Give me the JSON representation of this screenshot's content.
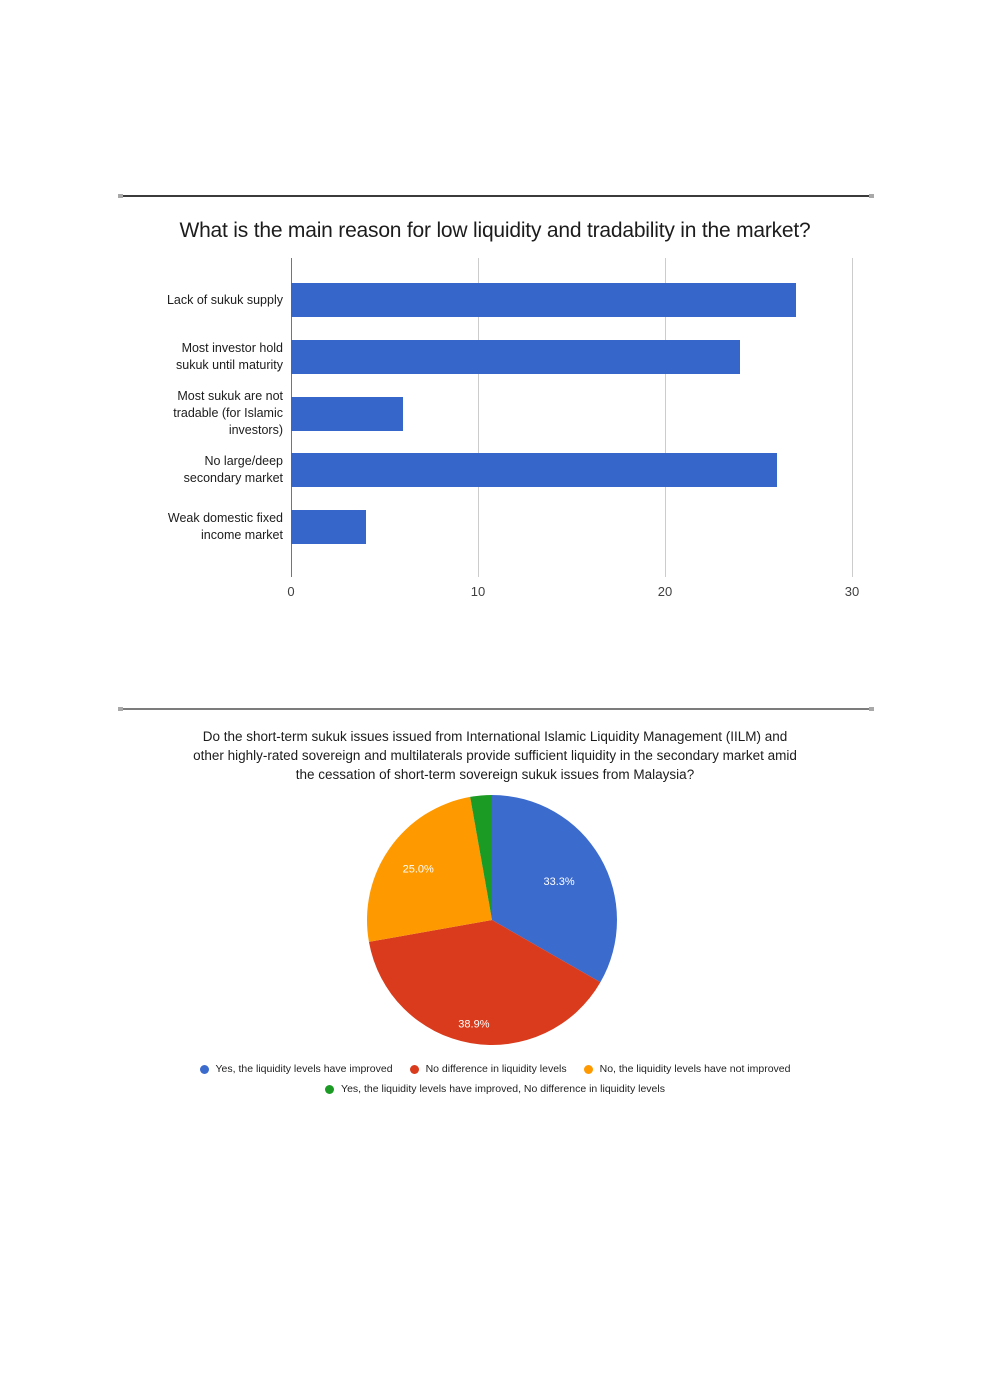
{
  "page": {
    "background": "#ffffff"
  },
  "chart_data": [
    {
      "type": "bar",
      "orientation": "horizontal",
      "title": "What is the main reason for low liquidity and tradability in the market?",
      "categories": [
        "Lack of sukuk supply",
        "Most investor hold sukuk until maturity",
        "Most sukuk are not tradable (for Islamic investors)",
        "No large/deep secondary market",
        "Weak domestic fixed income market"
      ],
      "category_lines": [
        [
          "Lack of sukuk supply"
        ],
        [
          "Most investor hold",
          "sukuk until maturity"
        ],
        [
          "Most sukuk are not",
          "tradable (for Islamic",
          "investors)"
        ],
        [
          "No large/deep",
          "secondary market"
        ],
        [
          "Weak domestic fixed",
          "income market"
        ]
      ],
      "values": [
        27,
        24,
        6,
        26,
        4
      ],
      "xticks": [
        0,
        10,
        20,
        30
      ],
      "xlim": [
        0,
        30
      ],
      "bar_color": "#3666c9",
      "axis_color": "#757575",
      "grid_color": "#cccccc",
      "grid": true,
      "legend_position": "none"
    },
    {
      "type": "pie",
      "title": "Do the short-term sukuk issues issued from International Islamic Liquidity Management (IILM) and other highly-rated sovereign and multilaterals provide sufficient liquidity in the secondary market amid the cessation of short-term sovereign sukuk issues from Malaysia?",
      "title_lines": [
        "Do the short-term sukuk issues issued from International Islamic Liquidity Management (IILM) and",
        "other highly-rated sovereign and multilaterals provide sufficient liquidity in the secondary market amid",
        "the cessation of short-term sovereign sukuk issues from Malaysia?"
      ],
      "start_angle_deg": 0,
      "direction": "clockwise",
      "legend_position": "bottom",
      "slices": [
        {
          "label": "Yes, the liquidity levels have improved",
          "value_pct": 33.3,
          "color": "#3c6bce",
          "data_label": "33.3%",
          "label_r": 0.62
        },
        {
          "label": "No difference in liquidity levels",
          "value_pct": 38.9,
          "color": "#d93b1c",
          "data_label": "38.9%",
          "label_r": 0.84
        },
        {
          "label": "No, the liquidity levels have not improved",
          "value_pct": 25.0,
          "color": "#ff9900",
          "data_label": "25.0%",
          "label_r": 0.72
        },
        {
          "label": "Yes, the liquidity levels have improved, No difference in liquidity levels",
          "value_pct": 2.8,
          "color": "#1b9b24",
          "data_label": "",
          "label_r": 0
        }
      ],
      "legend_rows": [
        [
          0,
          1,
          2
        ],
        [
          3
        ]
      ]
    }
  ]
}
